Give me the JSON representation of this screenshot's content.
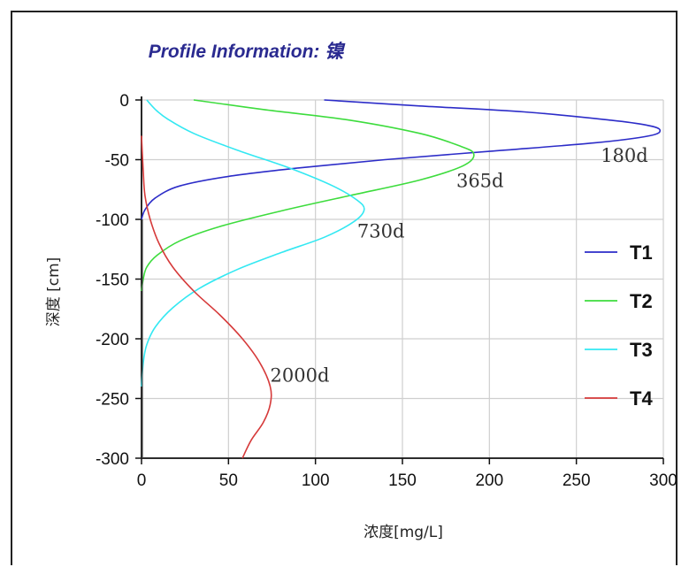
{
  "chart_data": {
    "type": "line",
    "title": "Profile Information:  镍",
    "xlabel": "浓度[mg/L]",
    "ylabel": "深度 [cm]",
    "xlim": [
      0,
      300
    ],
    "ylim": [
      -300,
      0
    ],
    "xticks": [
      "0",
      "50",
      "100",
      "150",
      "200",
      "250",
      "300"
    ],
    "yticks": [
      "0",
      "-50",
      "-100",
      "-150",
      "-200",
      "-250",
      "-300"
    ],
    "grid": true,
    "legend_position": "right",
    "series": [
      {
        "name": "T1",
        "color": "#2c2cc8",
        "annotation": "180d",
        "x": [
          105,
          160,
          220,
          270,
          290,
          298,
          292,
          260,
          200,
          140,
          90,
          50,
          22,
          8,
          2,
          0
        ],
        "y": [
          0,
          -5,
          -10,
          -17,
          -21,
          -25,
          -30,
          -36,
          -43,
          -50,
          -57,
          -64,
          -72,
          -82,
          -92,
          -100
        ]
      },
      {
        "name": "T2",
        "color": "#3ddc3d",
        "annotation": "365d",
        "x": [
          30,
          70,
          120,
          160,
          182,
          191,
          185,
          160,
          120,
          80,
          45,
          22,
          9,
          3,
          1,
          0
        ],
        "y": [
          0,
          -8,
          -17,
          -28,
          -38,
          -45,
          -55,
          -67,
          -80,
          -93,
          -106,
          -118,
          -130,
          -140,
          -150,
          -160
        ]
      },
      {
        "name": "T3",
        "color": "#33e8f2",
        "annotation": "730d",
        "x": [
          3,
          8,
          15,
          30,
          55,
          85,
          110,
          124,
          128,
          122,
          105,
          80,
          55,
          33,
          18,
          8,
          3,
          1,
          0
        ],
        "y": [
          0,
          -8,
          -16,
          -28,
          -42,
          -57,
          -72,
          -84,
          -92,
          -102,
          -115,
          -128,
          -142,
          -158,
          -174,
          -190,
          -205,
          -220,
          -240
        ]
      },
      {
        "name": "T4",
        "color": "#d63a3a",
        "annotation": "2000d",
        "x": [
          0,
          1,
          2,
          5,
          10,
          18,
          30,
          45,
          58,
          68,
          74,
          74,
          70,
          63,
          58
        ],
        "y": [
          -30,
          -60,
          -80,
          -100,
          -120,
          -140,
          -160,
          -180,
          -200,
          -220,
          -240,
          -255,
          -270,
          -285,
          -300
        ]
      }
    ],
    "annotation_positions": [
      {
        "label": "180d",
        "x": 264,
        "y": -52
      },
      {
        "label": "365d",
        "x": 181,
        "y": -73
      },
      {
        "label": "730d",
        "x": 124,
        "y": -115
      },
      {
        "label": "2000d",
        "x": 74,
        "y": -236
      }
    ]
  }
}
